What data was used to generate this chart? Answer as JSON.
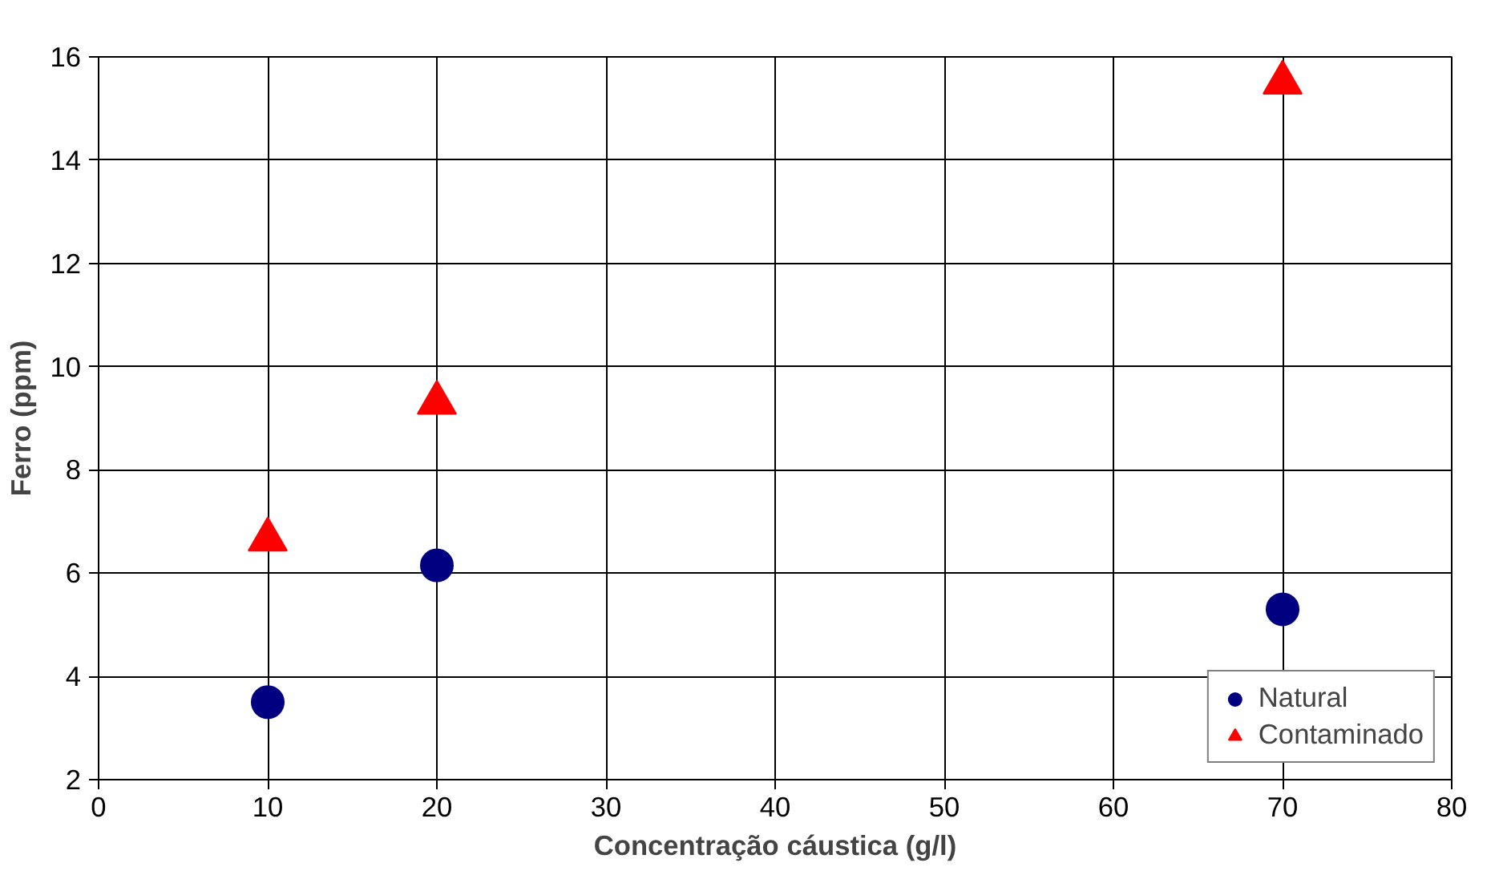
{
  "chart_data": {
    "type": "scatter",
    "xlabel": "Concentração cáustica (g/l)",
    "ylabel": "Ferro (ppm)",
    "x": [
      10,
      20,
      70
    ],
    "series": [
      {
        "name": "Natural",
        "color": "#000080",
        "marker": "circle",
        "values": [
          3.5,
          6.15,
          5.3
        ]
      },
      {
        "name": "Contaminado",
        "color": "#ff0000",
        "marker": "triangle",
        "values": [
          6.65,
          9.3,
          15.5
        ]
      }
    ],
    "xlim": [
      0,
      80
    ],
    "xticks": [
      0,
      10,
      20,
      30,
      40,
      50,
      60,
      70,
      80
    ],
    "ylim": [
      2,
      16
    ],
    "yticks": [
      2,
      4,
      6,
      8,
      10,
      12,
      14,
      16
    ],
    "grid": true,
    "legend": "bottom right"
  }
}
